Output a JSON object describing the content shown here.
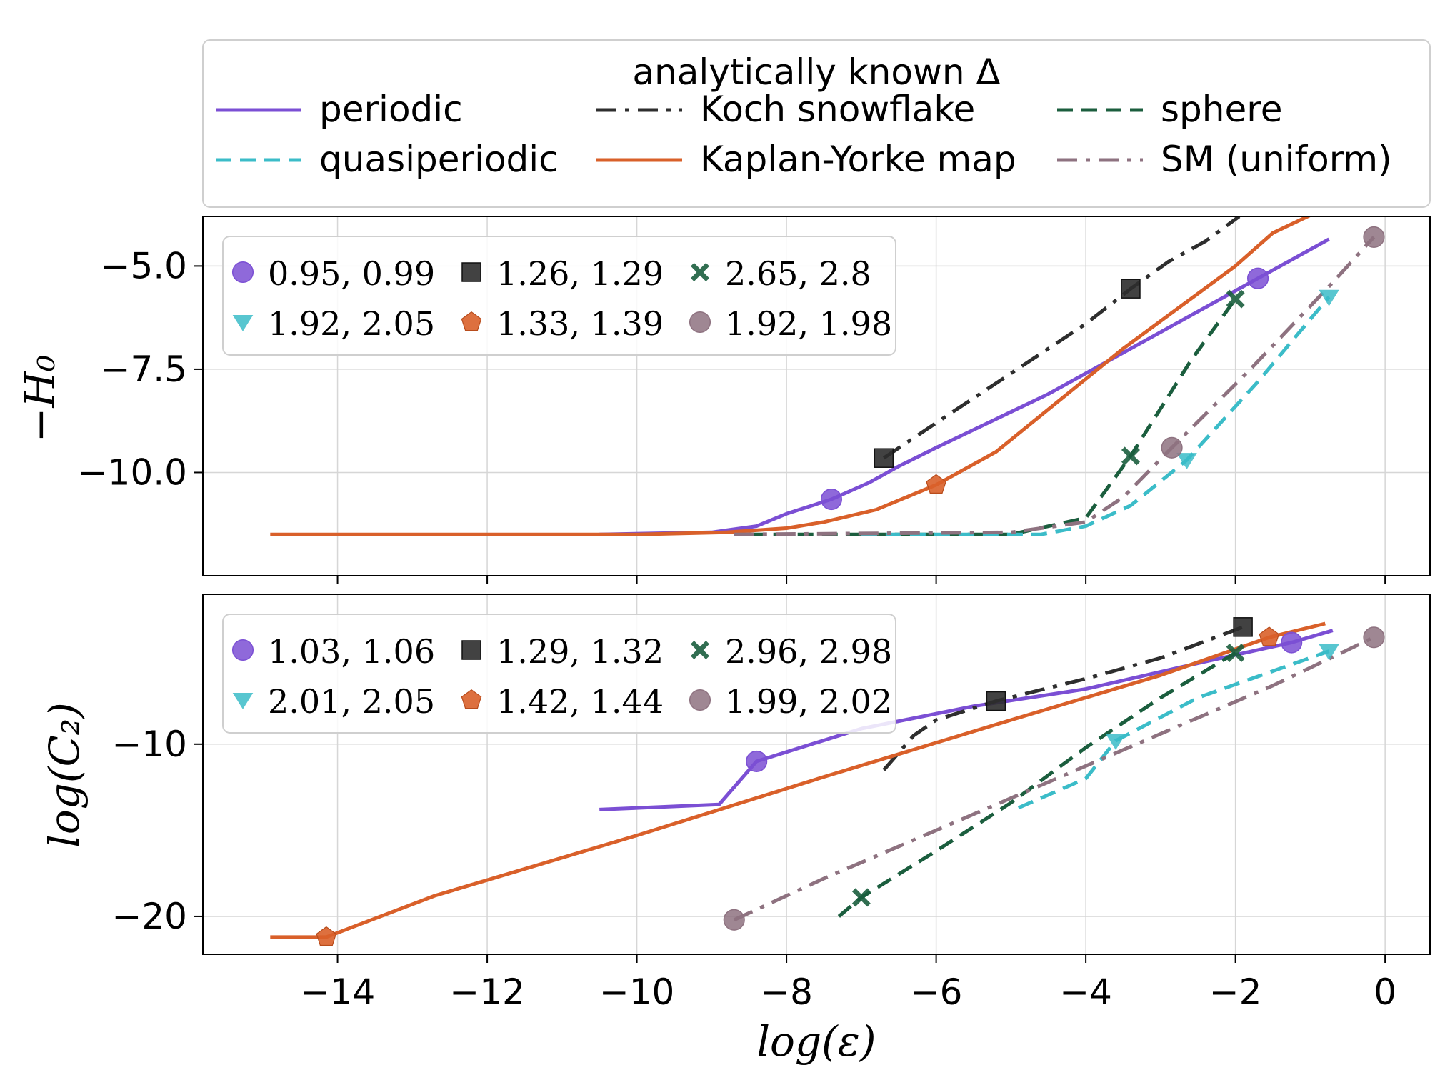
{
  "chart_data": {
    "type": "line",
    "x_axis": {
      "label": "log(ε)",
      "ticks": [
        -14,
        -12,
        -10,
        -8,
        -6,
        -4,
        -2,
        0
      ],
      "range": [
        -15.8,
        0.6
      ]
    },
    "legend": {
      "title": "analytically known Δ",
      "entries": [
        {
          "name": "periodic",
          "color": "#7b4fd4",
          "dash": "solid"
        },
        {
          "name": "Koch snowflake",
          "color": "#2e2e2e",
          "dash": "dashdot"
        },
        {
          "name": "sphere",
          "color": "#1b5e3e",
          "dash": "dashed"
        },
        {
          "name": "quasiperiodic",
          "color": "#3bbcc8",
          "dash": "dashed"
        },
        {
          "name": "Kaplan-Yorke map",
          "color": "#d9602a",
          "dash": "solid"
        },
        {
          "name": "SM (uniform)",
          "color": "#8e7280",
          "dash": "dashdot"
        }
      ]
    },
    "panels": [
      {
        "id": "top",
        "ylabel": "−H₀",
        "ylim": [
          -12.5,
          -3.8
        ],
        "yticks": [
          -5.0,
          -7.5,
          -10.0
        ],
        "ytick_labels": [
          "−5.0",
          "−7.5",
          "−10.0"
        ],
        "series": [
          {
            "name": "periodic",
            "color": "#7b4fd4",
            "dash": "solid",
            "x": [
              -10.5,
              -9.0,
              -8.4,
              -8.0,
              -7.4,
              -6.9,
              -6.5,
              -6.0,
              -4.5,
              -3.0,
              -1.7,
              -0.75
            ],
            "y": [
              -11.5,
              -11.45,
              -11.3,
              -11.0,
              -10.65,
              -10.25,
              -9.85,
              -9.4,
              -8.1,
              -6.6,
              -5.3,
              -4.35
            ],
            "markers": [
              {
                "x": -7.4,
                "y": -10.65
              },
              {
                "x": -1.7,
                "y": -5.3
              }
            ]
          },
          {
            "name": "Koch snowflake",
            "color": "#2e2e2e",
            "dash": "dashdot",
            "x": [
              -6.7,
              -6.0,
              -5.0,
              -4.0,
              -3.4,
              -2.9,
              -2.4,
              -1.95
            ],
            "y": [
              -9.65,
              -8.8,
              -7.6,
              -6.4,
              -5.55,
              -4.9,
              -4.4,
              -3.8
            ],
            "markers": [
              {
                "x": -6.7,
                "y": -9.65
              },
              {
                "x": -3.4,
                "y": -5.55
              }
            ]
          },
          {
            "name": "sphere",
            "color": "#1b5e3e",
            "dash": "dashed",
            "x": [
              -8.5,
              -5.0,
              -4.0,
              -3.4,
              -2.6,
              -2.0
            ],
            "y": [
              -11.5,
              -11.5,
              -11.1,
              -9.6,
              -7.3,
              -5.8
            ],
            "markers": [
              {
                "x": -3.4,
                "y": -9.6
              },
              {
                "x": -2.0,
                "y": -5.8
              }
            ]
          },
          {
            "name": "quasiperiodic",
            "color": "#3bbcc8",
            "dash": "dashed",
            "x": [
              -7.0,
              -4.6,
              -4.0,
              -3.4,
              -2.65,
              -1.7,
              -0.75
            ],
            "y": [
              -11.5,
              -11.5,
              -11.3,
              -10.8,
              -9.7,
              -7.8,
              -5.75
            ],
            "markers": [
              {
                "x": -2.65,
                "y": -9.7
              },
              {
                "x": -0.75,
                "y": -5.75
              }
            ]
          },
          {
            "name": "Kaplan-Yorke map",
            "color": "#d9602a",
            "dash": "solid",
            "x": [
              -14.9,
              -10.0,
              -8.8,
              -8.0,
              -7.5,
              -6.8,
              -6.0,
              -5.2,
              -3.5,
              -2.0,
              -1.5,
              -0.8
            ],
            "y": [
              -11.5,
              -11.5,
              -11.45,
              -11.35,
              -11.2,
              -10.9,
              -10.3,
              -9.5,
              -7.0,
              -5.0,
              -4.2,
              -3.6
            ],
            "markers": [
              {
                "x": -6.0,
                "y": -10.3
              },
              {
                "x": -0.8,
                "y": -3.6
              }
            ]
          },
          {
            "name": "SM (uniform)",
            "color": "#8e7280",
            "dash": "dashdot",
            "x": [
              -8.7,
              -5.0,
              -4.0,
              -3.5,
              -2.85,
              -1.8,
              -0.7,
              -0.15
            ],
            "y": [
              -11.5,
              -11.45,
              -11.2,
              -10.6,
              -9.4,
              -7.5,
              -5.4,
              -4.3
            ],
            "markers": [
              {
                "x": -2.85,
                "y": -9.4
              },
              {
                "x": -0.15,
                "y": -4.3
              }
            ]
          }
        ],
        "markers_legend": [
          {
            "label": "0.95, 0.99",
            "color": "#7b4fd4",
            "marker": "circle"
          },
          {
            "label": "1.26, 1.29",
            "color": "#2e2e2e",
            "marker": "square"
          },
          {
            "label": "2.65, 2.8",
            "color": "#1b5e3e",
            "marker": "x"
          },
          {
            "label": "1.92, 2.05",
            "color": "#3bbcc8",
            "marker": "triangle"
          },
          {
            "label": "1.33, 1.39",
            "color": "#d9602a",
            "marker": "pentagon"
          },
          {
            "label": "1.92, 1.98",
            "color": "#8e7280",
            "marker": "circle"
          }
        ]
      },
      {
        "id": "bottom",
        "ylabel": "log(C₂)",
        "ylim": [
          -22.2,
          -1.3
        ],
        "yticks": [
          -10,
          -20
        ],
        "ytick_labels": [
          "−10",
          "−20"
        ],
        "series": [
          {
            "name": "periodic",
            "color": "#7b4fd4",
            "dash": "solid",
            "x": [
              -10.5,
              -8.9,
              -8.4,
              -7.0,
              -5.5,
              -4.0,
              -2.5,
              -1.25,
              -0.7
            ],
            "y": [
              -13.8,
              -13.5,
              -11.0,
              -9.1,
              -7.8,
              -6.8,
              -5.3,
              -4.1,
              -3.4
            ],
            "markers": [
              {
                "x": -8.4,
                "y": -11.0
              },
              {
                "x": -1.25,
                "y": -4.1
              }
            ]
          },
          {
            "name": "Koch snowflake",
            "color": "#2e2e2e",
            "dash": "dashdot",
            "x": [
              -6.7,
              -6.3,
              -6.0,
              -5.2,
              -4.0,
              -3.0,
              -1.9
            ],
            "y": [
              -11.5,
              -9.5,
              -8.6,
              -7.5,
              -6.2,
              -5.0,
              -3.2
            ],
            "markers": [
              {
                "x": -5.2,
                "y": -7.5
              },
              {
                "x": -1.9,
                "y": -3.2
              }
            ]
          },
          {
            "name": "sphere",
            "color": "#1b5e3e",
            "dash": "dashed",
            "x": [
              -7.3,
              -7.0,
              -6.0,
              -5.0,
              -4.0,
              -3.0,
              -2.0
            ],
            "y": [
              -20.0,
              -18.9,
              -16.2,
              -13.4,
              -10.2,
              -7.3,
              -4.7
            ],
            "markers": [
              {
                "x": -7.0,
                "y": -18.9
              },
              {
                "x": -2.0,
                "y": -4.7
              }
            ]
          },
          {
            "name": "quasiperiodic",
            "color": "#3bbcc8",
            "dash": "dashed",
            "x": [
              -4.9,
              -4.0,
              -3.6,
              -2.5,
              -0.75
            ],
            "y": [
              -13.7,
              -12.0,
              -9.8,
              -7.3,
              -4.6
            ],
            "markers": [
              {
                "x": -3.6,
                "y": -9.8
              },
              {
                "x": -0.75,
                "y": -4.6
              }
            ]
          },
          {
            "name": "Kaplan-Yorke map",
            "color": "#d9602a",
            "dash": "solid",
            "x": [
              -14.9,
              -14.15,
              -12.7,
              -10.0,
              -7.5,
              -5.0,
              -3.0,
              -1.55,
              -0.8
            ],
            "y": [
              -21.2,
              -21.2,
              -18.8,
              -15.3,
              -11.9,
              -8.6,
              -6.0,
              -3.8,
              -3.0
            ],
            "markers": [
              {
                "x": -14.15,
                "y": -21.2
              },
              {
                "x": -1.55,
                "y": -3.8
              }
            ]
          },
          {
            "name": "SM (uniform)",
            "color": "#8e7280",
            "dash": "dashdot",
            "x": [
              -8.7,
              -7.5,
              -6.0,
              -4.5,
              -3.0,
              -1.5,
              -0.15
            ],
            "y": [
              -20.2,
              -17.8,
              -15.0,
              -12.2,
              -9.4,
              -6.6,
              -3.8
            ],
            "markers": [
              {
                "x": -8.7,
                "y": -20.2
              },
              {
                "x": -0.15,
                "y": -3.8
              }
            ]
          }
        ],
        "markers_legend": [
          {
            "label": "1.03, 1.06",
            "color": "#7b4fd4",
            "marker": "circle"
          },
          {
            "label": "1.29, 1.32",
            "color": "#2e2e2e",
            "marker": "square"
          },
          {
            "label": "2.96, 2.98",
            "color": "#1b5e3e",
            "marker": "x"
          },
          {
            "label": "2.01, 2.05",
            "color": "#3bbcc8",
            "marker": "triangle"
          },
          {
            "label": "1.42, 1.44",
            "color": "#d9602a",
            "marker": "pentagon"
          },
          {
            "label": "1.99, 2.02",
            "color": "#8e7280",
            "marker": "circle"
          }
        ]
      }
    ]
  }
}
